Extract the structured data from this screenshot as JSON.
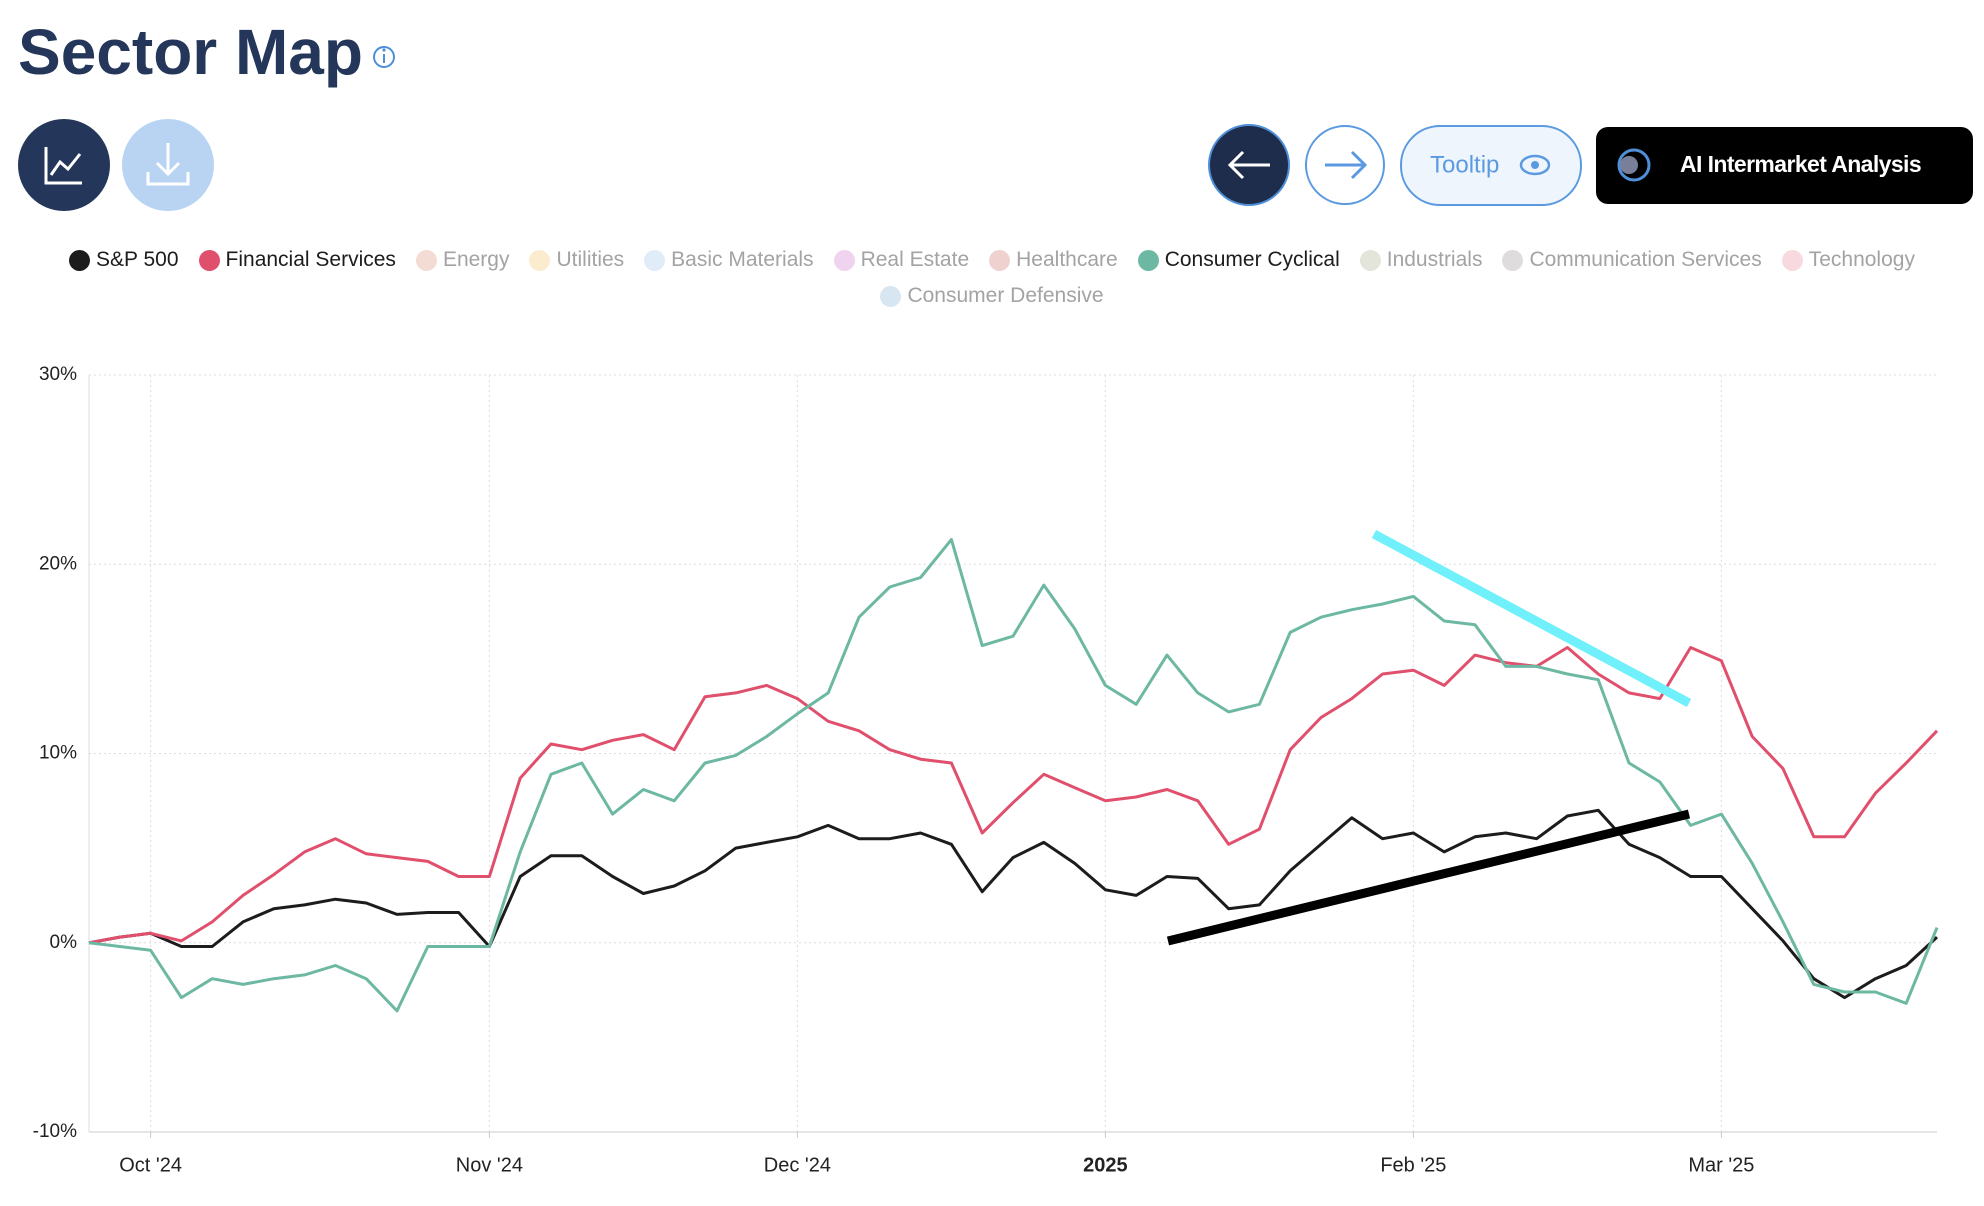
{
  "header": {
    "title": "Sector Map"
  },
  "toolbar": {
    "tooltip": "Tooltip",
    "ai": "AI Intermarket Analysis"
  },
  "chart_data": {
    "type": "line",
    "categories": [
      null,
      null,
      "Oct '24",
      null,
      null,
      null,
      null,
      null,
      null,
      null,
      null,
      null,
      null,
      "Nov '24",
      null,
      null,
      null,
      null,
      null,
      null,
      null,
      null,
      null,
      "Dec '24",
      null,
      null,
      null,
      null,
      null,
      null,
      null,
      null,
      null,
      "2025",
      null,
      null,
      null,
      null,
      null,
      null,
      null,
      null,
      null,
      "Feb '25",
      null,
      null,
      null,
      null,
      null,
      null,
      null,
      null,
      null,
      "Mar '25",
      null,
      null,
      null,
      null,
      null,
      null,
      null
    ],
    "ylim": [
      -10,
      30
    ],
    "yticks": [
      {
        "value": -10,
        "label": "-10%"
      },
      {
        "value": 0,
        "label": "0%"
      },
      {
        "value": 10,
        "label": "10%"
      },
      {
        "value": 20,
        "label": "20%"
      },
      {
        "value": 30,
        "label": "30%"
      }
    ],
    "grid": true,
    "series": [
      {
        "name": "S&P 500",
        "color": "#1c1c1c",
        "visible": true,
        "values": [
          0,
          0.3,
          0.5,
          -0.2,
          -0.2,
          1.1,
          1.8,
          2.0,
          2.3,
          2.1,
          1.5,
          1.6,
          1.6,
          -0.2,
          3.5,
          4.6,
          4.6,
          3.5,
          2.6,
          3.0,
          3.8,
          5.0,
          5.3,
          5.6,
          6.2,
          5.5,
          5.5,
          5.8,
          5.2,
          2.7,
          4.5,
          5.3,
          4.2,
          2.8,
          2.5,
          3.5,
          3.4,
          1.8,
          2.0,
          3.8,
          5.2,
          6.6,
          5.5,
          5.8,
          4.8,
          5.6,
          5.8,
          5.5,
          6.7,
          7.0,
          5.2,
          4.5,
          3.5,
          3.5,
          1.8,
          0.1,
          -1.9,
          -2.9,
          -1.9,
          -1.2,
          0.3
        ]
      },
      {
        "name": "Financial Services",
        "color": "#e0506d",
        "visible": true,
        "values": [
          0,
          0.3,
          0.5,
          0.1,
          1.1,
          2.5,
          3.6,
          4.8,
          5.5,
          4.7,
          4.5,
          4.3,
          3.5,
          3.5,
          8.7,
          10.5,
          10.2,
          10.7,
          11.0,
          10.2,
          13.0,
          13.2,
          13.6,
          12.9,
          11.7,
          11.2,
          10.2,
          9.7,
          9.5,
          5.8,
          7.4,
          8.9,
          8.2,
          7.5,
          7.7,
          8.1,
          7.5,
          5.2,
          6.0,
          10.2,
          11.9,
          12.9,
          14.2,
          14.4,
          13.6,
          15.2,
          14.8,
          14.6,
          15.6,
          14.2,
          13.2,
          12.9,
          15.6,
          14.9,
          10.9,
          9.2,
          5.6,
          5.6,
          7.9,
          9.5,
          11.2
        ]
      },
      {
        "name": "Energy",
        "color": "#f3dcd3",
        "visible": false
      },
      {
        "name": "Utilities",
        "color": "#fbeccf",
        "visible": false
      },
      {
        "name": "Basic Materials",
        "color": "#e1ecf9",
        "visible": false
      },
      {
        "name": "Real Estate",
        "color": "#f0d4ef",
        "visible": false
      },
      {
        "name": "Healthcare",
        "color": "#efd2cf",
        "visible": false
      },
      {
        "name": "Consumer Cyclical",
        "color": "#6db8a3",
        "visible": true,
        "values": [
          0,
          -0.2,
          -0.4,
          -2.9,
          -1.9,
          -2.2,
          -1.9,
          -1.7,
          -1.2,
          -1.9,
          -3.6,
          -0.2,
          -0.2,
          -0.2,
          4.8,
          8.9,
          9.5,
          6.8,
          8.1,
          7.5,
          9.5,
          9.9,
          10.9,
          12.1,
          13.2,
          17.2,
          18.8,
          19.3,
          21.3,
          15.7,
          16.2,
          18.9,
          16.6,
          13.6,
          12.6,
          15.2,
          13.2,
          12.2,
          12.6,
          16.4,
          17.2,
          17.6,
          17.9,
          18.3,
          17.0,
          16.8,
          14.6,
          14.6,
          14.2,
          13.9,
          9.5,
          8.5,
          6.2,
          6.8,
          4.2,
          1.1,
          -2.2,
          -2.6,
          -2.6,
          -3.2,
          0.8
        ]
      },
      {
        "name": "Industrials",
        "color": "#e3e4da",
        "visible": false
      },
      {
        "name": "Communication Services",
        "color": "#dedcdc",
        "visible": false
      },
      {
        "name": "Technology",
        "color": "#f9d9e0",
        "visible": false
      },
      {
        "name": "Consumer Defensive",
        "color": "#d7e6f1",
        "visible": false
      }
    ]
  }
}
